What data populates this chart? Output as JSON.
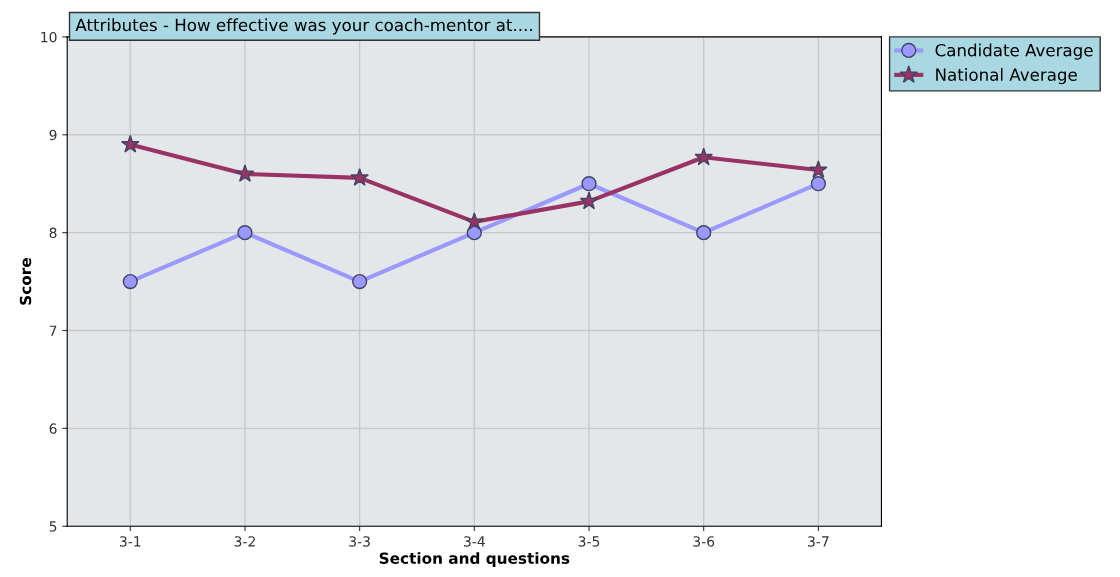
{
  "chart_data": {
    "type": "line",
    "title": "Attributes - How effective was your coach-mentor at....",
    "xlabel": "Section and questions",
    "ylabel": "Score",
    "categories": [
      "3-1",
      "3-2",
      "3-3",
      "3-4",
      "3-5",
      "3-6",
      "3-7"
    ],
    "series": [
      {
        "name": "Candidate Average",
        "color": "#9999ff",
        "marker": "circle",
        "values": [
          7.5,
          8,
          7.5,
          8,
          8.5,
          8,
          8.5
        ]
      },
      {
        "name": "National Average",
        "color": "#993366",
        "marker": "star",
        "values": [
          8.9,
          8.6,
          8.56,
          8.11,
          8.32,
          8.77,
          8.64
        ]
      }
    ],
    "ylim": [
      5,
      10
    ],
    "yticks": [
      5,
      6,
      7,
      8,
      9,
      10
    ],
    "grid": true,
    "legend": "top right",
    "line_style": "solid"
  }
}
